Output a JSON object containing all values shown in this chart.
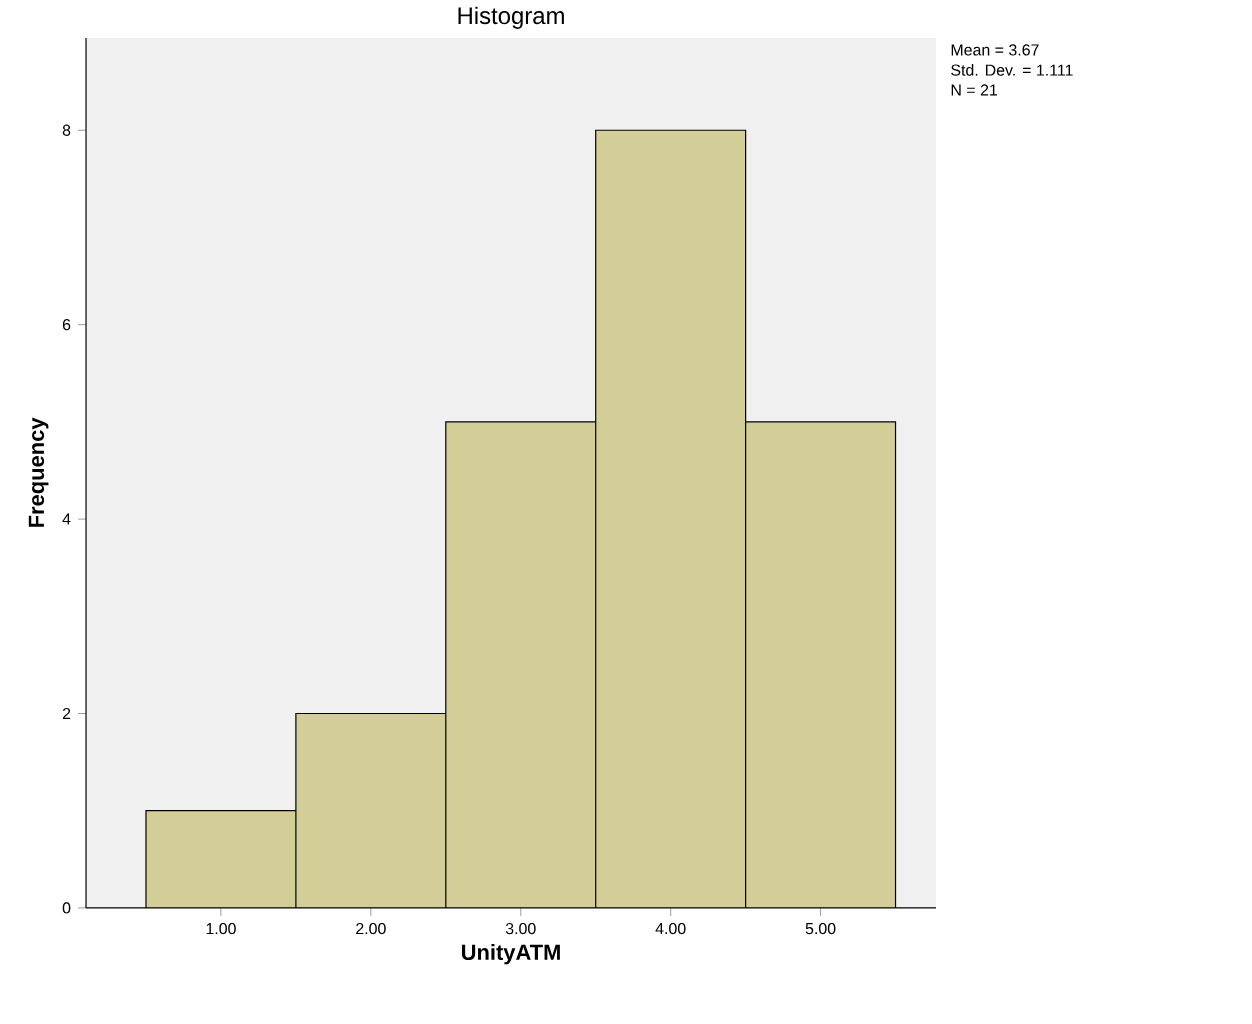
{
  "chart_data": {
    "type": "histogram",
    "title": "Histogram",
    "xlabel": "UnityATM",
    "ylabel": "Frequency",
    "bins": [
      0.5,
      1.5,
      2.5,
      3.5,
      4.5,
      5.5
    ],
    "values": [
      1,
      2,
      5,
      8,
      5
    ],
    "color": "#d3ce97",
    "xlim": [
      0.1,
      5.77
    ],
    "ylim": [
      0,
      8.95
    ],
    "xticks": [
      {
        "value": 1,
        "label": "1.00"
      },
      {
        "value": 2,
        "label": "2.00"
      },
      {
        "value": 3,
        "label": "3.00"
      },
      {
        "value": 4,
        "label": "4.00"
      },
      {
        "value": 5,
        "label": "5.00"
      }
    ],
    "yticks": [
      0,
      2,
      4,
      6,
      8
    ],
    "annotations": [
      "Mean = 3.67",
      "Std. Dev. = 1.111",
      "N = 21"
    ]
  }
}
